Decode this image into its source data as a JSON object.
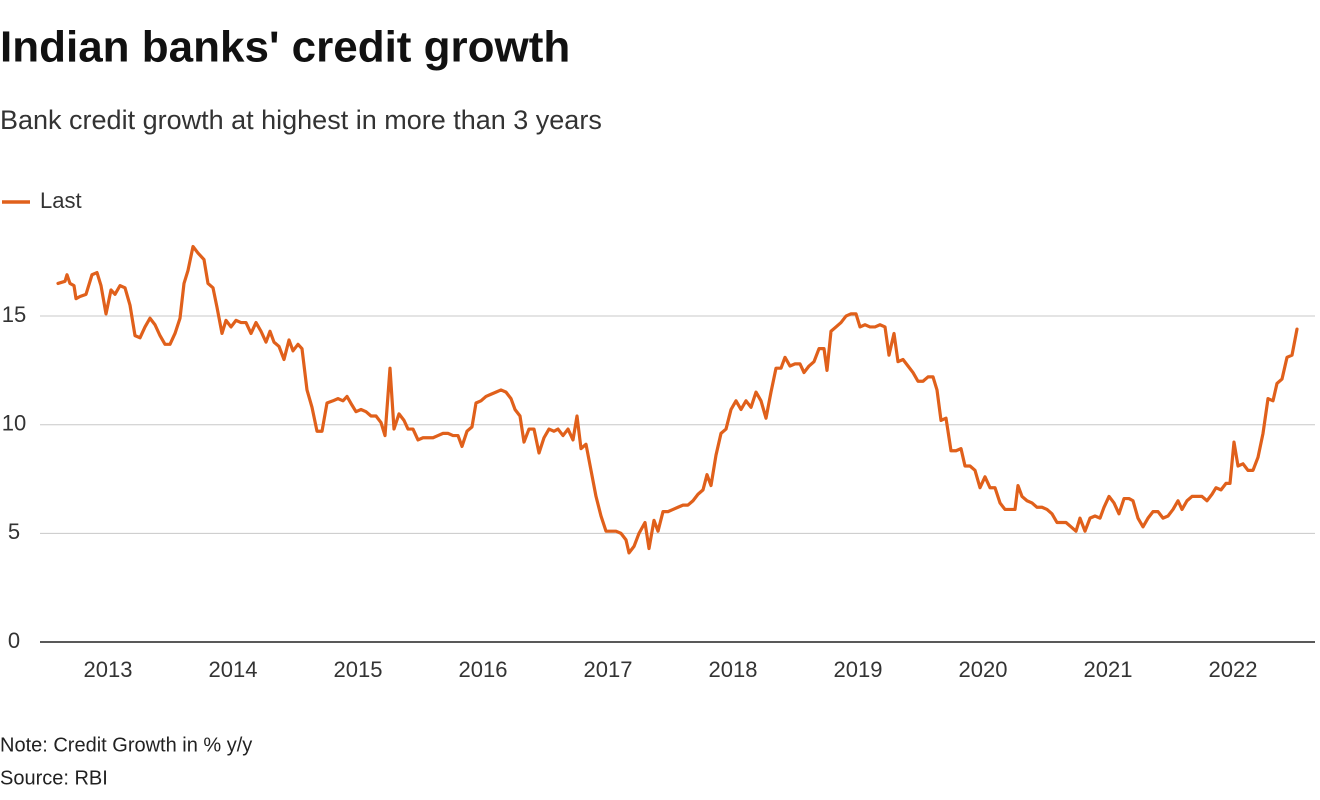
{
  "chart_data": {
    "type": "line",
    "title": "Indian banks' credit growth",
    "subtitle": "Bank credit growth at highest in more than 3 years",
    "note": "Note: Credit Growth in % y/y",
    "source": "Source: RBI",
    "legend": "top-left",
    "grid": true,
    "xlim": [
      2012.456,
      2022.656
    ],
    "xticks": [
      2013,
      2014,
      2015,
      2016,
      2017,
      2018,
      2019,
      2020,
      2021,
      2022
    ],
    "ylim": [
      0,
      18.5
    ],
    "yticks": [
      0,
      5,
      10,
      15
    ],
    "x": [
      2012.6,
      2012.656,
      2012.672,
      2012.696,
      2012.728,
      2012.744,
      2012.776,
      2012.824,
      2012.872,
      2012.912,
      2012.944,
      2012.984,
      2013.024,
      2013.056,
      2013.096,
      2013.136,
      2013.176,
      2013.216,
      2013.256,
      2013.296,
      2013.336,
      2013.376,
      2013.416,
      2013.456,
      2013.496,
      2013.536,
      2013.576,
      2013.608,
      2013.64,
      2013.68,
      2013.72,
      2013.768,
      2013.8,
      2013.84,
      2013.872,
      2013.912,
      2013.944,
      2013.984,
      2014.024,
      2014.064,
      2014.104,
      2014.144,
      2014.184,
      2014.224,
      2014.264,
      2014.296,
      2014.328,
      2014.368,
      2014.408,
      2014.448,
      2014.48,
      2014.52,
      2014.552,
      2014.592,
      2014.632,
      2014.672,
      2014.712,
      2014.752,
      2014.8,
      2014.84,
      2014.88,
      2014.912,
      2014.952,
      2014.984,
      2015.024,
      2015.064,
      2015.104,
      2015.144,
      2015.184,
      2015.216,
      2015.256,
      2015.288,
      2015.328,
      2015.368,
      2015.4,
      2015.44,
      2015.48,
      2015.52,
      2015.56,
      2015.6,
      2015.64,
      2015.68,
      2015.72,
      2015.76,
      2015.8,
      2015.832,
      2015.872,
      2015.912,
      2015.944,
      2015.984,
      2016.024,
      2016.064,
      2016.104,
      2016.144,
      2016.184,
      2016.224,
      2016.256,
      2016.296,
      2016.328,
      2016.368,
      2016.408,
      2016.448,
      2016.488,
      2016.528,
      2016.568,
      2016.6,
      2016.64,
      2016.68,
      2016.72,
      2016.752,
      2016.784,
      2016.824,
      2016.864,
      2016.904,
      2016.944,
      2016.984,
      2017.024,
      2017.064,
      2017.104,
      2017.144,
      2017.168,
      2017.208,
      2017.248,
      2017.296,
      2017.328,
      2017.368,
      2017.4,
      2017.44,
      2017.48,
      2017.52,
      2017.56,
      2017.6,
      2017.64,
      2017.68,
      2017.72,
      2017.76,
      2017.792,
      2017.824,
      2017.864,
      2017.904,
      2017.944,
      2017.984,
      2018.024,
      2018.064,
      2018.104,
      2018.144,
      2018.184,
      2018.224,
      2018.264,
      2018.304,
      2018.344,
      2018.384,
      2018.416,
      2018.456,
      2018.496,
      2018.536,
      2018.568,
      2018.608,
      2018.648,
      2018.688,
      2018.728,
      2018.752,
      2018.784,
      2018.824,
      2018.864,
      2018.904,
      2018.944,
      2018.984,
      2019.016,
      2019.056,
      2019.096,
      2019.136,
      2019.176,
      2019.216,
      2019.248,
      2019.288,
      2019.32,
      2019.36,
      2019.4,
      2019.44,
      2019.48,
      2019.52,
      2019.56,
      2019.6,
      2019.632,
      2019.664,
      2019.704,
      2019.744,
      2019.784,
      2019.824,
      2019.856,
      2019.896,
      2019.936,
      2019.976,
      2020.016,
      2020.056,
      2020.096,
      2020.136,
      2020.176,
      2020.216,
      2020.256,
      2020.28,
      2020.312,
      2020.352,
      2020.392,
      2020.432,
      2020.472,
      2020.512,
      2020.552,
      2020.592,
      2020.632,
      2020.664,
      2020.704,
      2020.744,
      2020.776,
      2020.816,
      2020.856,
      2020.896,
      2020.936,
      2020.968,
      2021.008,
      2021.048,
      2021.088,
      2021.128,
      2021.168,
      2021.2,
      2021.24,
      2021.28,
      2021.32,
      2021.36,
      2021.4,
      2021.44,
      2021.48,
      2021.52,
      2021.56,
      2021.592,
      2021.632,
      2021.672,
      2021.712,
      2021.752,
      2021.792,
      2021.832,
      2021.864,
      2021.904,
      2021.944,
      2021.976,
      2022.008,
      2022.04,
      2022.08,
      2022.12,
      2022.16,
      2022.2,
      2022.24,
      2022.28,
      2022.32,
      2022.352,
      2022.392,
      2022.432,
      2022.472,
      2022.512
    ],
    "series": [
      {
        "name": "Last",
        "color": "#e0601b",
        "values": [
          16.5,
          16.6,
          16.9,
          16.5,
          16.4,
          15.8,
          15.9,
          16.0,
          16.9,
          17.0,
          16.4,
          15.1,
          16.2,
          16.0,
          16.4,
          16.3,
          15.5,
          14.1,
          14.0,
          14.5,
          14.9,
          14.6,
          14.1,
          13.7,
          13.7,
          14.2,
          14.9,
          16.5,
          17.1,
          18.2,
          17.9,
          17.6,
          16.5,
          16.3,
          15.4,
          14.2,
          14.8,
          14.5,
          14.8,
          14.7,
          14.7,
          14.2,
          14.7,
          14.3,
          13.8,
          14.3,
          13.8,
          13.6,
          13.0,
          13.9,
          13.4,
          13.7,
          13.5,
          11.6,
          10.8,
          9.7,
          9.7,
          11.0,
          11.1,
          11.2,
          11.1,
          11.3,
          10.9,
          10.6,
          10.7,
          10.6,
          10.4,
          10.4,
          10.1,
          9.5,
          12.6,
          9.8,
          10.5,
          10.2,
          9.8,
          9.8,
          9.3,
          9.4,
          9.4,
          9.4,
          9.5,
          9.6,
          9.6,
          9.5,
          9.5,
          9.0,
          9.7,
          9.9,
          11.0,
          11.1,
          11.3,
          11.4,
          11.5,
          11.6,
          11.5,
          11.2,
          10.7,
          10.4,
          9.2,
          9.8,
          9.8,
          8.7,
          9.4,
          9.8,
          9.7,
          9.8,
          9.5,
          9.8,
          9.3,
          10.4,
          8.9,
          9.1,
          7.9,
          6.7,
          5.8,
          5.1,
          5.1,
          5.1,
          5.0,
          4.7,
          4.1,
          4.4,
          5.0,
          5.5,
          4.3,
          5.6,
          5.1,
          6.0,
          6.0,
          6.1,
          6.2,
          6.3,
          6.3,
          6.5,
          6.8,
          7.0,
          7.7,
          7.2,
          8.6,
          9.6,
          9.8,
          10.7,
          11.1,
          10.7,
          11.1,
          10.8,
          11.5,
          11.1,
          10.3,
          11.5,
          12.6,
          12.6,
          13.1,
          12.7,
          12.8,
          12.8,
          12.4,
          12.7,
          12.9,
          13.5,
          13.5,
          12.5,
          14.3,
          14.5,
          14.7,
          15.0,
          15.1,
          15.1,
          14.5,
          14.6,
          14.5,
          14.5,
          14.6,
          14.5,
          13.2,
          14.2,
          12.9,
          13.0,
          12.7,
          12.4,
          12.0,
          12.0,
          12.2,
          12.2,
          11.6,
          10.2,
          10.3,
          8.8,
          8.8,
          8.9,
          8.1,
          8.1,
          7.9,
          7.1,
          7.6,
          7.1,
          7.1,
          6.4,
          6.1,
          6.1,
          6.1,
          7.2,
          6.7,
          6.5,
          6.4,
          6.2,
          6.2,
          6.1,
          5.9,
          5.5,
          5.5,
          5.5,
          5.3,
          5.1,
          5.7,
          5.1,
          5.7,
          5.8,
          5.7,
          6.2,
          6.7,
          6.4,
          5.9,
          6.6,
          6.6,
          6.5,
          5.7,
          5.3,
          5.7,
          6.0,
          6.0,
          5.7,
          5.8,
          6.1,
          6.5,
          6.1,
          6.5,
          6.7,
          6.7,
          6.7,
          6.5,
          6.8,
          7.1,
          7.0,
          7.3,
          7.3,
          9.2,
          8.1,
          8.2,
          7.9,
          7.9,
          8.5,
          9.6,
          11.2,
          11.1,
          11.9,
          12.1,
          13.1,
          13.2,
          14.4
        ]
      }
    ]
  }
}
